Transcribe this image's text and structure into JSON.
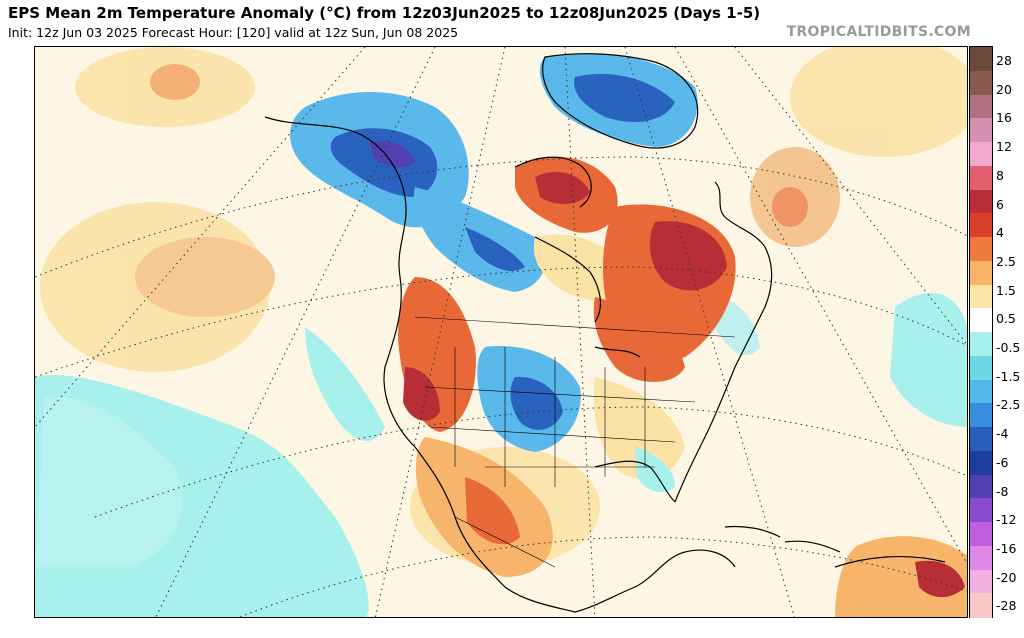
{
  "header": {
    "title": "EPS Mean 2m Temperature Anomaly (°C) from 12z03Jun2025 to 12z08Jun2025 (Days 1-5)",
    "subtitle": "Init: 12z Jun 03 2025   Forecast Hour: [120]   valid at 12z Sun, Jun 08 2025",
    "brand": "TROPICALTIDBITS.COM"
  },
  "colorbar": {
    "labels": [
      "28",
      "20",
      "16",
      "12",
      "8",
      "6",
      "4",
      "2.5",
      "1.5",
      "0.5",
      "-0.5",
      "-1.5",
      "-2.5",
      "-4",
      "-6",
      "-8",
      "-12",
      "-16",
      "-20",
      "-28"
    ],
    "colors": [
      "#6b4a3a",
      "#8a5a50",
      "#b07080",
      "#d490b0",
      "#f0a8cc",
      "#e06070",
      "#b82e36",
      "#d8402c",
      "#ef7a40",
      "#f7b468",
      "#fbe6a8",
      "#ffffff",
      "#a8f0ec",
      "#6cd8e8",
      "#52b8ea",
      "#3a8cdc",
      "#2a5cbc",
      "#1e3e9c",
      "#5040b0",
      "#8a4ad0",
      "#c060e0",
      "#e088e8",
      "#f0b0e0",
      "#f8c8c8"
    ]
  },
  "map": {
    "palette": {
      "ocean_neutral": "#fdf6e4",
      "light_warm": "#fbe3a6",
      "warm": "#f6b56a",
      "hot": "#e86838",
      "very_hot": "#b82e36",
      "light_cool": "#a8f0ec",
      "cool": "#5ab8ea",
      "cold": "#2a62c0",
      "very_cold": "#1e3e9c",
      "coast": "#000000",
      "grid": "#333333"
    }
  }
}
